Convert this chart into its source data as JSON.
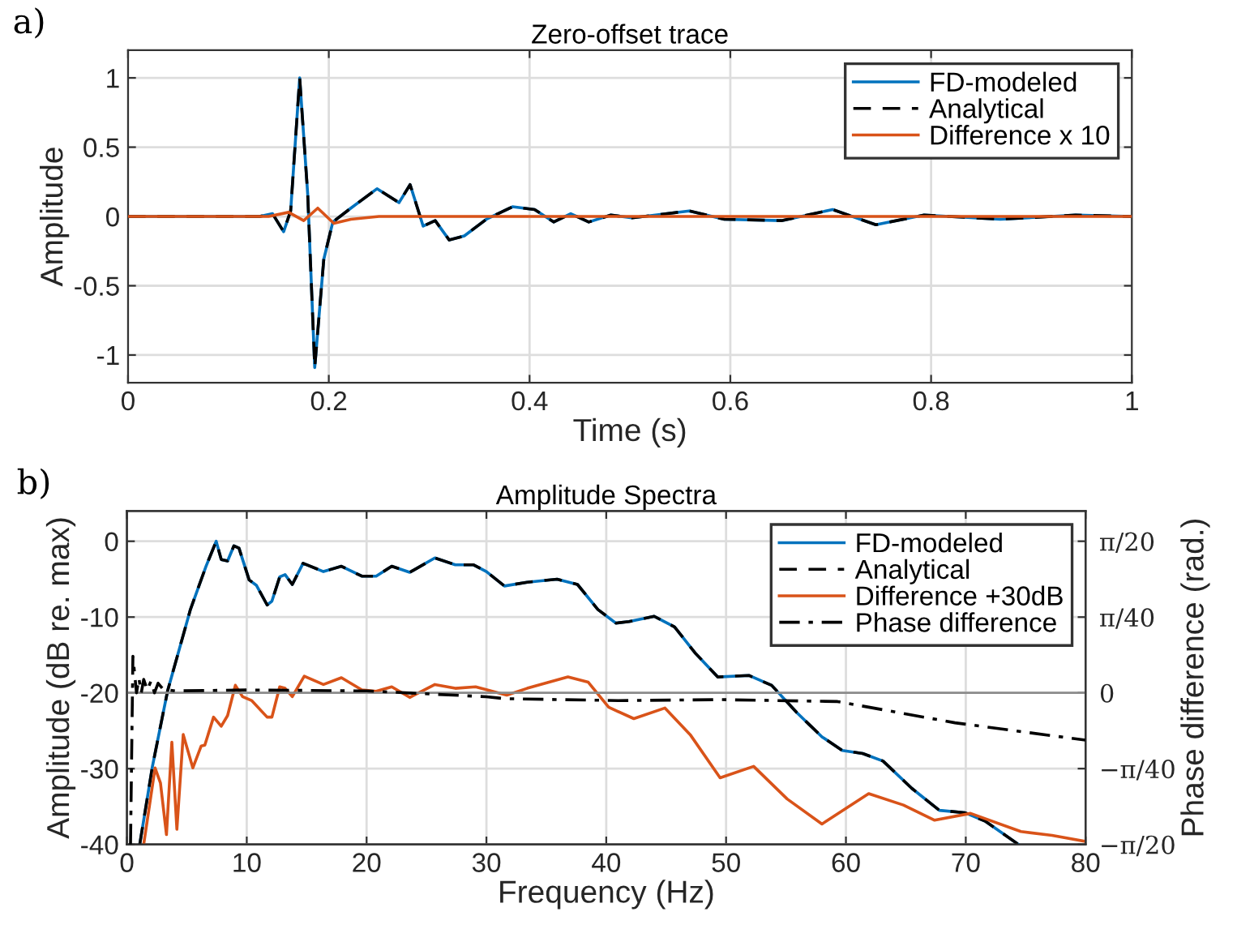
{
  "chart_data": [
    {
      "type": "line",
      "title": "Zero-offset trace",
      "xlabel": "Time (s)",
      "ylabel": "Amplitude",
      "annotations": [
        "a)"
      ],
      "xlim": [
        0,
        1
      ],
      "xticks": [
        0,
        0.2,
        0.4,
        0.6,
        0.8,
        1
      ],
      "ylim": [
        -1.2,
        1.2
      ],
      "yticks": [
        -1,
        -0.5,
        0,
        0.5,
        1
      ],
      "grid": true,
      "legend": "top right",
      "series": [
        {
          "name": "FD-modeled",
          "color": "#0072bd",
          "line_style": "solid",
          "x": [
            0,
            0.131,
            0.144,
            0.155,
            0.162,
            0.171,
            0.179,
            0.186,
            0.195,
            0.204,
            0.222,
            0.248,
            0.27,
            0.281,
            0.294,
            0.306,
            0.32,
            0.335,
            0.357,
            0.383,
            0.405,
            0.424,
            0.441,
            0.459,
            0.481,
            0.502,
            0.559,
            0.594,
            0.651,
            0.702,
            0.745,
            0.793,
            0.869,
            0.944,
            1
          ],
          "values": [
            0,
            0,
            0.02,
            -0.11,
            0.04,
            1.0,
            0.16,
            -1.09,
            -0.31,
            -0.04,
            0.06,
            0.2,
            0.1,
            0.23,
            -0.07,
            -0.03,
            -0.17,
            -0.14,
            -0.02,
            0.07,
            0.05,
            -0.04,
            0.02,
            -0.04,
            0.01,
            -0.01,
            0.04,
            -0.02,
            -0.03,
            0.05,
            -0.06,
            0.01,
            -0.02,
            0.01,
            0
          ]
        },
        {
          "name": "Analytical",
          "color": "#000000",
          "line_style": "dashed",
          "x": [
            0,
            0.131,
            0.144,
            0.155,
            0.162,
            0.171,
            0.179,
            0.186,
            0.195,
            0.204,
            0.222,
            0.248,
            0.27,
            0.281,
            0.294,
            0.306,
            0.32,
            0.335,
            0.357,
            0.383,
            0.405,
            0.424,
            0.441,
            0.459,
            0.481,
            0.502,
            0.559,
            0.594,
            0.651,
            0.702,
            0.745,
            0.793,
            0.869,
            0.944,
            1
          ],
          "values": [
            0,
            0,
            0.02,
            -0.11,
            0.04,
            1.0,
            0.16,
            -1.09,
            -0.31,
            -0.04,
            0.06,
            0.2,
            0.1,
            0.23,
            -0.07,
            -0.03,
            -0.17,
            -0.14,
            -0.02,
            0.07,
            0.05,
            -0.04,
            0.02,
            -0.04,
            0.01,
            -0.01,
            0.04,
            -0.02,
            -0.03,
            0.05,
            -0.06,
            0.01,
            -0.02,
            0.01,
            0
          ]
        },
        {
          "name": "Difference x 10",
          "color": "#d95319",
          "line_style": "solid",
          "x": [
            0,
            0.14,
            0.16,
            0.175,
            0.189,
            0.205,
            0.222,
            0.25,
            1
          ],
          "values": [
            0,
            0,
            0.03,
            -0.03,
            0.06,
            -0.05,
            -0.02,
            0,
            0
          ]
        }
      ]
    },
    {
      "type": "line",
      "title": "Amplitude Spectra",
      "xlabel": "Frequency (Hz)",
      "ylabel": "Amplitude (dB re. max)",
      "y2label": "Phase difference (rad.)",
      "annotations": [
        "b)"
      ],
      "xlim": [
        0,
        80
      ],
      "xticks": [
        0,
        10,
        20,
        30,
        40,
        50,
        60,
        70,
        80
      ],
      "ylim": [
        -40,
        4
      ],
      "yticks": [
        -40,
        -30,
        -20,
        -10,
        0
      ],
      "y2lim": [
        -0.1571,
        0.1885
      ],
      "y2ticks": [
        {
          "value": -0.1571,
          "label": "−π/20"
        },
        {
          "value": -0.0785,
          "label": "−π/40"
        },
        0,
        {
          "value": 0.0785,
          "label": "π/40"
        },
        {
          "value": 0.1571,
          "label": "π/20"
        }
      ],
      "grid": true,
      "legend": "top right",
      "ref_lines": [
        {
          "axis": "y2",
          "value": 0,
          "color": "#8c8c8c",
          "line_style": "solid"
        }
      ],
      "series": [
        {
          "name": "FD-modeled",
          "color": "#0072bd",
          "line_style": "solid",
          "x": [
            1.07,
            2.13,
            3.4,
            5.3,
            6.6,
            7.45,
            7.87,
            8.4,
            8.93,
            9.35,
            10.2,
            10.8,
            11.7,
            12.1,
            12.75,
            13.2,
            13.8,
            14.7,
            16.4,
            17.9,
            19.6,
            20.8,
            22.1,
            23.6,
            25.7,
            27.4,
            28.9,
            30.0,
            31.5,
            33.4,
            35.9,
            37.6,
            39.3,
            40.8,
            41.9,
            44.0,
            45.7,
            47.4,
            49.3,
            51.9,
            53.8,
            55.9,
            58.0,
            59.7,
            61.4,
            63.1,
            65.5,
            67.8,
            69.9,
            71.6,
            74.4
          ],
          "values": [
            -40,
            -29.7,
            -19.7,
            -9.0,
            -3.3,
            0,
            -2.4,
            -2.6,
            -0.6,
            -0.9,
            -5.1,
            -5.8,
            -8.4,
            -7.9,
            -4.7,
            -4.4,
            -5.7,
            -2.9,
            -4.0,
            -3.3,
            -4.6,
            -4.6,
            -3.3,
            -4.1,
            -2.2,
            -3.1,
            -3.1,
            -4.0,
            -5.9,
            -5.4,
            -5.0,
            -5.7,
            -9.0,
            -10.8,
            -10.6,
            -9.9,
            -11.3,
            -14.7,
            -17.9,
            -17.7,
            -19.0,
            -22.6,
            -25.8,
            -27.6,
            -28.0,
            -29.0,
            -32.6,
            -35.5,
            -35.8,
            -36.9,
            -40
          ]
        },
        {
          "name": "Analytical",
          "color": "#000000",
          "line_style": "dashed",
          "x": [
            1.07,
            2.13,
            3.4,
            5.3,
            6.6,
            7.45,
            7.87,
            8.4,
            8.93,
            9.35,
            10.2,
            10.8,
            11.7,
            12.1,
            12.75,
            13.2,
            13.8,
            14.7,
            16.4,
            17.9,
            19.6,
            20.8,
            22.1,
            23.6,
            25.7,
            27.4,
            28.9,
            30.0,
            31.5,
            33.4,
            35.9,
            37.6,
            39.3,
            40.8,
            41.9,
            44.0,
            45.7,
            47.4,
            49.3,
            51.9,
            53.8,
            55.9,
            58.0,
            59.7,
            61.4,
            63.1,
            65.5,
            67.8,
            69.9,
            71.6,
            74.4
          ],
          "values": [
            -40,
            -29.7,
            -19.7,
            -9.0,
            -3.3,
            0,
            -2.4,
            -2.6,
            -0.6,
            -0.9,
            -5.1,
            -5.8,
            -8.4,
            -7.9,
            -4.7,
            -4.4,
            -5.7,
            -2.9,
            -4.0,
            -3.3,
            -4.6,
            -4.6,
            -3.3,
            -4.1,
            -2.2,
            -3.1,
            -3.1,
            -4.0,
            -5.9,
            -5.4,
            -5.0,
            -5.7,
            -9.0,
            -10.8,
            -10.6,
            -9.9,
            -11.3,
            -14.7,
            -17.9,
            -17.7,
            -19.0,
            -22.6,
            -25.8,
            -27.6,
            -28.0,
            -29.0,
            -32.6,
            -35.5,
            -35.8,
            -36.9,
            -40
          ]
        },
        {
          "name": "Difference +30dB",
          "color": "#d95319",
          "line_style": "solid",
          "x": [
            1.4,
            2.35,
            2.8,
            3.3,
            3.75,
            4.17,
            4.7,
            5.5,
            6.2,
            6.5,
            7.23,
            7.87,
            8.4,
            9.05,
            9.65,
            10.4,
            11.7,
            12.1,
            12.75,
            13.2,
            13.8,
            14.8,
            16.4,
            17.9,
            19.6,
            20.8,
            22.1,
            23.6,
            25.7,
            27.4,
            29.1,
            31.7,
            33.4,
            36.8,
            38.5,
            40.2,
            42.3,
            44.9,
            47.0,
            49.5,
            52.3,
            55.1,
            58.0,
            61.9,
            64.8,
            67.4,
            70.4,
            74.6,
            77.2,
            80
          ],
          "values": [
            -40,
            -29.9,
            -31.9,
            -38.7,
            -26.5,
            -38.0,
            -25.5,
            -29.9,
            -27.0,
            -26.9,
            -23.2,
            -24.4,
            -23.0,
            -19.0,
            -20.5,
            -21.0,
            -23.2,
            -23.2,
            -19.2,
            -19.4,
            -20.5,
            -17.8,
            -18.9,
            -18.0,
            -19.6,
            -19.8,
            -19.2,
            -20.6,
            -18.9,
            -19.4,
            -19.2,
            -20.3,
            -19.4,
            -17.9,
            -18.6,
            -21.9,
            -23.4,
            -22.0,
            -25.5,
            -31.2,
            -29.7,
            -34.0,
            -37.3,
            -33.3,
            -34.8,
            -36.8,
            -35.9,
            -38.3,
            -38.8,
            -39.6
          ]
        },
        {
          "name": "Phase difference",
          "color": "#000000",
          "line_style": "dashdot",
          "axis": "y2",
          "x": [
            0.3,
            0.5,
            0.8,
            1.0,
            1.2,
            1.4,
            1.7,
            2.0,
            2.3,
            2.6,
            3.0,
            4.0,
            10,
            20,
            30,
            31.5,
            41,
            49.5,
            59.3,
            69.1,
            80
          ],
          "values": [
            -0.157,
            0.038,
            0.0,
            0.015,
            0.0,
            0.014,
            0.003,
            0.012,
            0.0,
            0.01,
            0.004,
            0.002,
            0.003,
            0.002,
            -0.004,
            -0.006,
            -0.008,
            -0.007,
            -0.009,
            -0.031,
            -0.049
          ]
        }
      ]
    }
  ]
}
